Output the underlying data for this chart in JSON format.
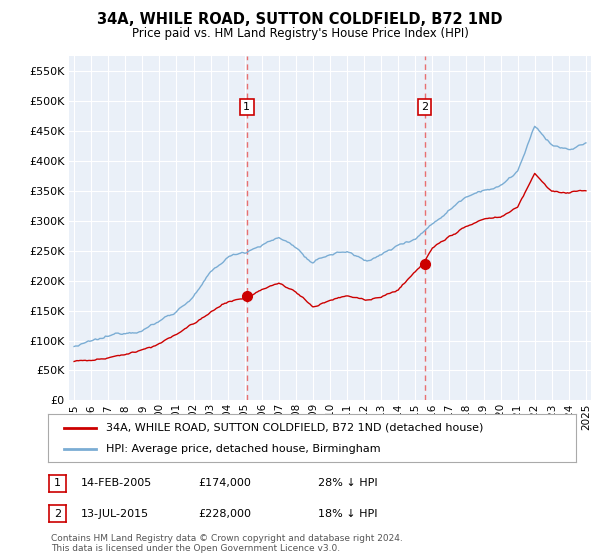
{
  "title": "34A, WHILE ROAD, SUTTON COLDFIELD, B72 1ND",
  "subtitle": "Price paid vs. HM Land Registry's House Price Index (HPI)",
  "legend_line1": "34A, WHILE ROAD, SUTTON COLDFIELD, B72 1ND (detached house)",
  "legend_line2": "HPI: Average price, detached house, Birmingham",
  "sale1_date": "14-FEB-2005",
  "sale1_price": 174000,
  "sale1_label": "28% ↓ HPI",
  "sale2_date": "13-JUL-2015",
  "sale2_price": 228000,
  "sale2_label": "18% ↓ HPI",
  "footer": "Contains HM Land Registry data © Crown copyright and database right 2024.\nThis data is licensed under the Open Government Licence v3.0.",
  "ylim": [
    0,
    575000
  ],
  "yticks": [
    0,
    50000,
    100000,
    150000,
    200000,
    250000,
    300000,
    350000,
    400000,
    450000,
    500000,
    550000
  ],
  "plot_bg": "#EAF0F8",
  "red_line_color": "#CC0000",
  "blue_line_color": "#7BADD4",
  "sale_marker_color": "#CC0000",
  "vline_color": "#E87070",
  "box_color": "#CC0000",
  "x_start_year": 1995,
  "x_end_year": 2025,
  "sale1_x": 2005.12,
  "sale2_x": 2015.54,
  "hpi_waypoints_x": [
    1995,
    1996,
    1997,
    1998,
    1999,
    2000,
    2001,
    2002,
    2003,
    2004,
    2005,
    2006,
    2007,
    2008,
    2009,
    2010,
    2011,
    2012,
    2013,
    2014,
    2015,
    2016,
    2017,
    2018,
    2019,
    2020,
    2021,
    2022,
    2023,
    2024,
    2025
  ],
  "hpi_waypoints_y": [
    90000,
    95000,
    100000,
    108000,
    118000,
    132000,
    150000,
    175000,
    210000,
    235000,
    245000,
    260000,
    270000,
    255000,
    225000,
    240000,
    245000,
    230000,
    240000,
    255000,
    270000,
    295000,
    320000,
    345000,
    360000,
    365000,
    390000,
    460000,
    430000,
    420000,
    430000
  ],
  "red_waypoints_x": [
    1995,
    1996,
    1997,
    1998,
    1999,
    2000,
    2001,
    2002,
    2003,
    2004,
    2005.12,
    2006,
    2007,
    2008,
    2009,
    2010,
    2011,
    2012,
    2013,
    2014,
    2015.54,
    2016,
    2017,
    2018,
    2019,
    2020,
    2021,
    2022,
    2023,
    2024,
    2025
  ],
  "red_waypoints_y": [
    65000,
    68000,
    72000,
    78000,
    86000,
    97000,
    110000,
    128000,
    150000,
    165000,
    174000,
    185000,
    195000,
    185000,
    162000,
    172000,
    178000,
    168000,
    173000,
    183000,
    228000,
    250000,
    270000,
    285000,
    295000,
    300000,
    320000,
    375000,
    350000,
    345000,
    350000
  ]
}
